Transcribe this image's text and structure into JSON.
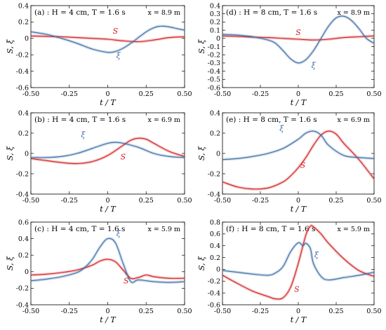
{
  "chart_data": [
    {
      "id": "a",
      "type": "line",
      "title": "(a) : H = 4 cm, T = 1.6 s",
      "location": "x = 8.9 m",
      "xlabel": "t / T",
      "ylabel": "S, ξ",
      "xlim": [
        -0.5,
        0.5
      ],
      "ylim": [
        -0.6,
        0.4
      ],
      "xticks": [
        "-0.50",
        "-0.25",
        "0",
        "0.25",
        "0.50"
      ],
      "yticks": [
        "-0.6",
        "-0.4",
        "-0.2",
        "0",
        "0.2",
        "0.4"
      ],
      "series": [
        {
          "name": "S",
          "color": "#d21f1f",
          "label_at": [
            0.05,
            0.06
          ],
          "x": [
            -0.5,
            -0.4,
            -0.3,
            -0.2,
            -0.1,
            0,
            0.1,
            0.2,
            0.3,
            0.4,
            0.5
          ],
          "y": [
            0.03,
            0.025,
            0.02,
            0.01,
            0.0,
            -0.01,
            -0.03,
            -0.04,
            -0.02,
            0.01,
            0.02
          ]
        },
        {
          "name": "ξ",
          "color": "#3d6ea8",
          "label_at": [
            0.07,
            -0.24
          ],
          "x": [
            -0.5,
            -0.4,
            -0.3,
            -0.2,
            -0.1,
            0,
            0.05,
            0.1,
            0.15,
            0.2,
            0.25,
            0.3,
            0.35,
            0.4,
            0.45,
            0.5
          ],
          "y": [
            0.08,
            0.05,
            0.0,
            -0.06,
            -0.13,
            -0.17,
            -0.16,
            -0.12,
            -0.06,
            0.01,
            0.08,
            0.13,
            0.15,
            0.14,
            0.12,
            0.1
          ]
        }
      ]
    },
    {
      "id": "d",
      "type": "line",
      "title": "(d) : H = 8 cm, T = 1.6 s",
      "location": "x = 8.9 m",
      "xlabel": "t / T",
      "ylabel": "S, ξ",
      "xlim": [
        -0.5,
        0.5
      ],
      "ylim": [
        -0.6,
        0.4
      ],
      "xticks": [
        "-0.50",
        "-0.25",
        "0",
        "0.25",
        "0.50"
      ],
      "yticks": [
        "-0.6",
        "-0.5",
        "-0.4",
        "-0.3",
        "-0.2",
        "-0.1",
        "0",
        "0.1",
        "0.2",
        "0.3",
        "0.4"
      ],
      "series": [
        {
          "name": "S",
          "color": "#d21f1f",
          "label_at": [
            0.0,
            0.04
          ],
          "x": [
            -0.5,
            -0.4,
            -0.3,
            -0.2,
            -0.1,
            0,
            0.1,
            0.2,
            0.3,
            0.4,
            0.5
          ],
          "y": [
            0.03,
            0.025,
            0.015,
            0.01,
            0.0,
            -0.01,
            -0.02,
            -0.01,
            0.01,
            0.02,
            0.03
          ]
        },
        {
          "name": "ξ",
          "color": "#3d6ea8",
          "label_at": [
            0.1,
            -0.36
          ],
          "x": [
            -0.5,
            -0.4,
            -0.3,
            -0.2,
            -0.15,
            -0.1,
            -0.05,
            0,
            0.05,
            0.1,
            0.15,
            0.2,
            0.25,
            0.3,
            0.35,
            0.4,
            0.45,
            0.5
          ],
          "y": [
            0.05,
            0.04,
            0.02,
            -0.02,
            -0.06,
            -0.15,
            -0.25,
            -0.3,
            -0.26,
            -0.15,
            0.0,
            0.15,
            0.25,
            0.27,
            0.22,
            0.12,
            0.0,
            -0.06
          ]
        }
      ]
    },
    {
      "id": "b",
      "type": "line",
      "title": "(b) : H = 4 cm, T = 1.6 s",
      "location": "x = 6.9 m",
      "xlabel": "t / T",
      "ylabel": "S, ξ",
      "xlim": [
        -0.5,
        0.5
      ],
      "ylim": [
        -0.4,
        0.4
      ],
      "xticks": [
        "-0.50",
        "-0.25",
        "0",
        "0.25",
        "0.50"
      ],
      "yticks": [
        "-0.4",
        "-0.2",
        "0",
        "0.2",
        "0.4"
      ],
      "series": [
        {
          "name": "S",
          "color": "#d21f1f",
          "label_at": [
            0.1,
            -0.06
          ],
          "x": [
            -0.5,
            -0.4,
            -0.3,
            -0.2,
            -0.1,
            0,
            0.1,
            0.15,
            0.2,
            0.25,
            0.3,
            0.4,
            0.5
          ],
          "y": [
            -0.05,
            -0.07,
            -0.09,
            -0.1,
            -0.08,
            -0.02,
            0.08,
            0.13,
            0.15,
            0.14,
            0.1,
            0.02,
            -0.03
          ]
        },
        {
          "name": "ξ",
          "color": "#3d6ea8",
          "label_at": [
            -0.16,
            0.16
          ],
          "x": [
            -0.5,
            -0.4,
            -0.3,
            -0.2,
            -0.1,
            0,
            0.05,
            0.1,
            0.2,
            0.3,
            0.4,
            0.5
          ],
          "y": [
            -0.04,
            -0.04,
            -0.03,
            0.0,
            0.05,
            0.1,
            0.11,
            0.1,
            0.06,
            0.0,
            -0.03,
            -0.04
          ]
        }
      ]
    },
    {
      "id": "e",
      "type": "line",
      "title": "(e) : H = 8 cm, T = 1.6 s",
      "location": "x = 6.9 m",
      "xlabel": "t / T",
      "ylabel": "S, ξ",
      "xlim": [
        -0.5,
        0.5
      ],
      "ylim": [
        -0.4,
        0.4
      ],
      "xticks": [
        "-0.50",
        "-0.25",
        "0",
        "0.25",
        "0.50"
      ],
      "yticks": [
        "-0.4",
        "-0.2",
        "0",
        "0.2",
        "0.4"
      ],
      "series": [
        {
          "name": "S",
          "color": "#d21f1f",
          "label_at": [
            0.03,
            -0.14
          ],
          "x": [
            -0.5,
            -0.4,
            -0.3,
            -0.2,
            -0.1,
            -0.05,
            0,
            0.05,
            0.1,
            0.15,
            0.2,
            0.25,
            0.3,
            0.4,
            0.5
          ],
          "y": [
            -0.28,
            -0.33,
            -0.35,
            -0.34,
            -0.28,
            -0.22,
            -0.14,
            -0.04,
            0.08,
            0.18,
            0.22,
            0.19,
            0.1,
            -0.06,
            -0.25
          ]
        },
        {
          "name": "ξ",
          "color": "#3d6ea8",
          "label_at": [
            -0.11,
            0.22
          ],
          "x": [
            -0.5,
            -0.4,
            -0.3,
            -0.2,
            -0.1,
            0,
            0.05,
            0.1,
            0.15,
            0.2,
            0.3,
            0.4,
            0.5
          ],
          "y": [
            -0.06,
            -0.05,
            -0.03,
            0.0,
            0.05,
            0.14,
            0.2,
            0.22,
            0.18,
            0.08,
            -0.02,
            -0.04,
            -0.05
          ]
        }
      ]
    },
    {
      "id": "c",
      "type": "line",
      "title": "(c) : H = 4 cm, T = 1.6 s",
      "location": "x = 5.9 m",
      "xlabel": "t / T",
      "ylabel": "S, ξ",
      "xlim": [
        -0.5,
        0.5
      ],
      "ylim": [
        -0.4,
        0.6
      ],
      "xticks": [
        "-0.50",
        "-0.25",
        "0",
        "0.25",
        "0.50"
      ],
      "yticks": [
        "-0.4",
        "-0.2",
        "0",
        "0.2",
        "0.4",
        "0.6"
      ],
      "series": [
        {
          "name": "S",
          "color": "#d21f1f",
          "label_at": [
            0.12,
            -0.14
          ],
          "x": [
            -0.5,
            -0.4,
            -0.3,
            -0.2,
            -0.1,
            -0.05,
            0,
            0.05,
            0.1,
            0.15,
            0.2,
            0.25,
            0.3,
            0.4,
            0.5
          ],
          "y": [
            -0.04,
            -0.03,
            -0.01,
            0.02,
            0.08,
            0.13,
            0.15,
            0.12,
            0.02,
            -0.08,
            -0.07,
            -0.04,
            -0.06,
            -0.08,
            -0.08
          ]
        },
        {
          "name": "ξ",
          "color": "#3d6ea8",
          "label_at": [
            0.07,
            0.43
          ],
          "x": [
            -0.5,
            -0.4,
            -0.3,
            -0.2,
            -0.15,
            -0.1,
            -0.05,
            0,
            0.05,
            0.1,
            0.15,
            0.2,
            0.3,
            0.4,
            0.5
          ],
          "y": [
            -0.11,
            -0.09,
            -0.06,
            -0.01,
            0.05,
            0.15,
            0.3,
            0.4,
            0.35,
            0.1,
            -0.12,
            -0.1,
            -0.12,
            -0.13,
            -0.12
          ]
        }
      ]
    },
    {
      "id": "f",
      "type": "line",
      "title": "(f) : H = 8 cm, T = 1.6 s",
      "location": "x = 5.9 m",
      "xlabel": "t / T",
      "ylabel": "S, ξ",
      "xlim": [
        -0.5,
        0.5
      ],
      "ylim": [
        -0.6,
        0.8
      ],
      "xticks": [
        "-0.50",
        "-0.25",
        "0",
        "0.25",
        "0.50"
      ],
      "yticks": [
        "-0.6",
        "-0.4",
        "-0.2",
        "0",
        "0.2",
        "0.4",
        "0.6",
        "0.8"
      ],
      "series": [
        {
          "name": "S",
          "color": "#d21f1f",
          "label_at": [
            -0.01,
            -0.38
          ],
          "x": [
            -0.5,
            -0.4,
            -0.3,
            -0.2,
            -0.15,
            -0.1,
            -0.05,
            0,
            0.05,
            0.08,
            0.1,
            0.15,
            0.2,
            0.3,
            0.4,
            0.5
          ],
          "y": [
            -0.1,
            -0.24,
            -0.37,
            -0.46,
            -0.5,
            -0.48,
            -0.3,
            0.1,
            0.58,
            0.73,
            0.72,
            0.6,
            0.44,
            0.18,
            -0.02,
            -0.12
          ]
        },
        {
          "name": "ξ",
          "color": "#3d6ea8",
          "label_at": [
            0.12,
            0.2
          ],
          "x": [
            -0.5,
            -0.4,
            -0.3,
            -0.2,
            -0.15,
            -0.1,
            -0.05,
            0,
            0.03,
            0.05,
            0.08,
            0.1,
            0.15,
            0.2,
            0.3,
            0.4,
            0.5
          ],
          "y": [
            -0.02,
            -0.05,
            -0.08,
            -0.1,
            -0.06,
            0.05,
            0.3,
            0.45,
            0.4,
            0.44,
            0.35,
            0.1,
            -0.12,
            -0.18,
            -0.14,
            -0.1,
            -0.05
          ]
        }
      ]
    }
  ]
}
